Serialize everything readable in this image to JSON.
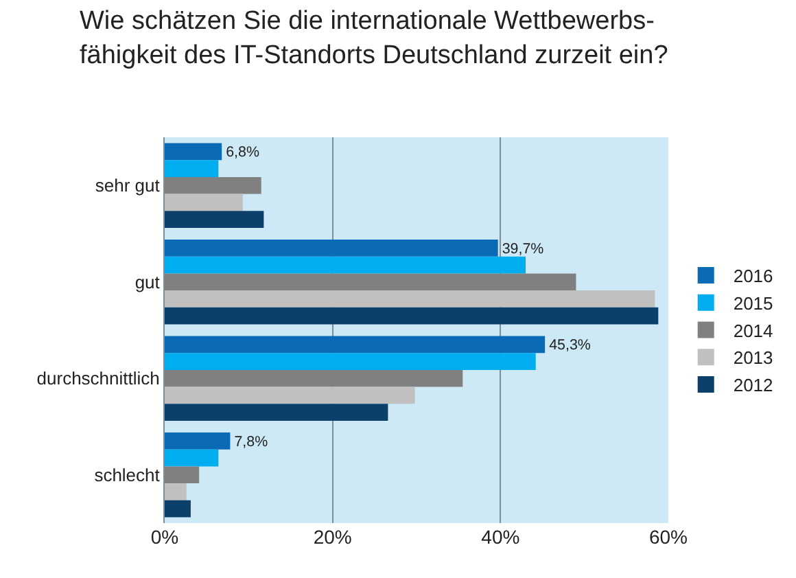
{
  "chart_data": {
    "type": "bar",
    "orientation": "horizontal",
    "title": "Wie schätzen Sie die internationale Wettbewerbs-\nfähigkeit des IT-Standorts Deutschland zurzeit ein?",
    "categories": [
      "sehr gut",
      "gut",
      "durchschnittlich",
      "schlecht"
    ],
    "series": [
      {
        "name": "2016",
        "color": "#0a6ab5",
        "values": [
          6.8,
          39.7,
          45.3,
          7.8
        ],
        "value_labels": [
          "6,8%",
          "39,7%",
          "45,3%",
          "7,8%"
        ]
      },
      {
        "name": "2015",
        "color": "#00aeef",
        "values": [
          6.4,
          43.0,
          44.2,
          6.4
        ]
      },
      {
        "name": "2014",
        "color": "#808080",
        "values": [
          11.5,
          49.0,
          35.5,
          4.1
        ]
      },
      {
        "name": "2013",
        "color": "#c0c0c0",
        "values": [
          9.3,
          58.4,
          29.8,
          2.6
        ]
      },
      {
        "name": "2012",
        "color": "#0d3f6b",
        "values": [
          11.8,
          58.8,
          26.6,
          3.1
        ]
      }
    ],
    "xlim": [
      0,
      60
    ],
    "xticks": [
      {
        "value": 0,
        "label": "0%"
      },
      {
        "value": 20,
        "label": "20%"
      },
      {
        "value": 40,
        "label": "40%"
      },
      {
        "value": 60,
        "label": "60%"
      }
    ],
    "grid": "x",
    "legend": "right"
  }
}
